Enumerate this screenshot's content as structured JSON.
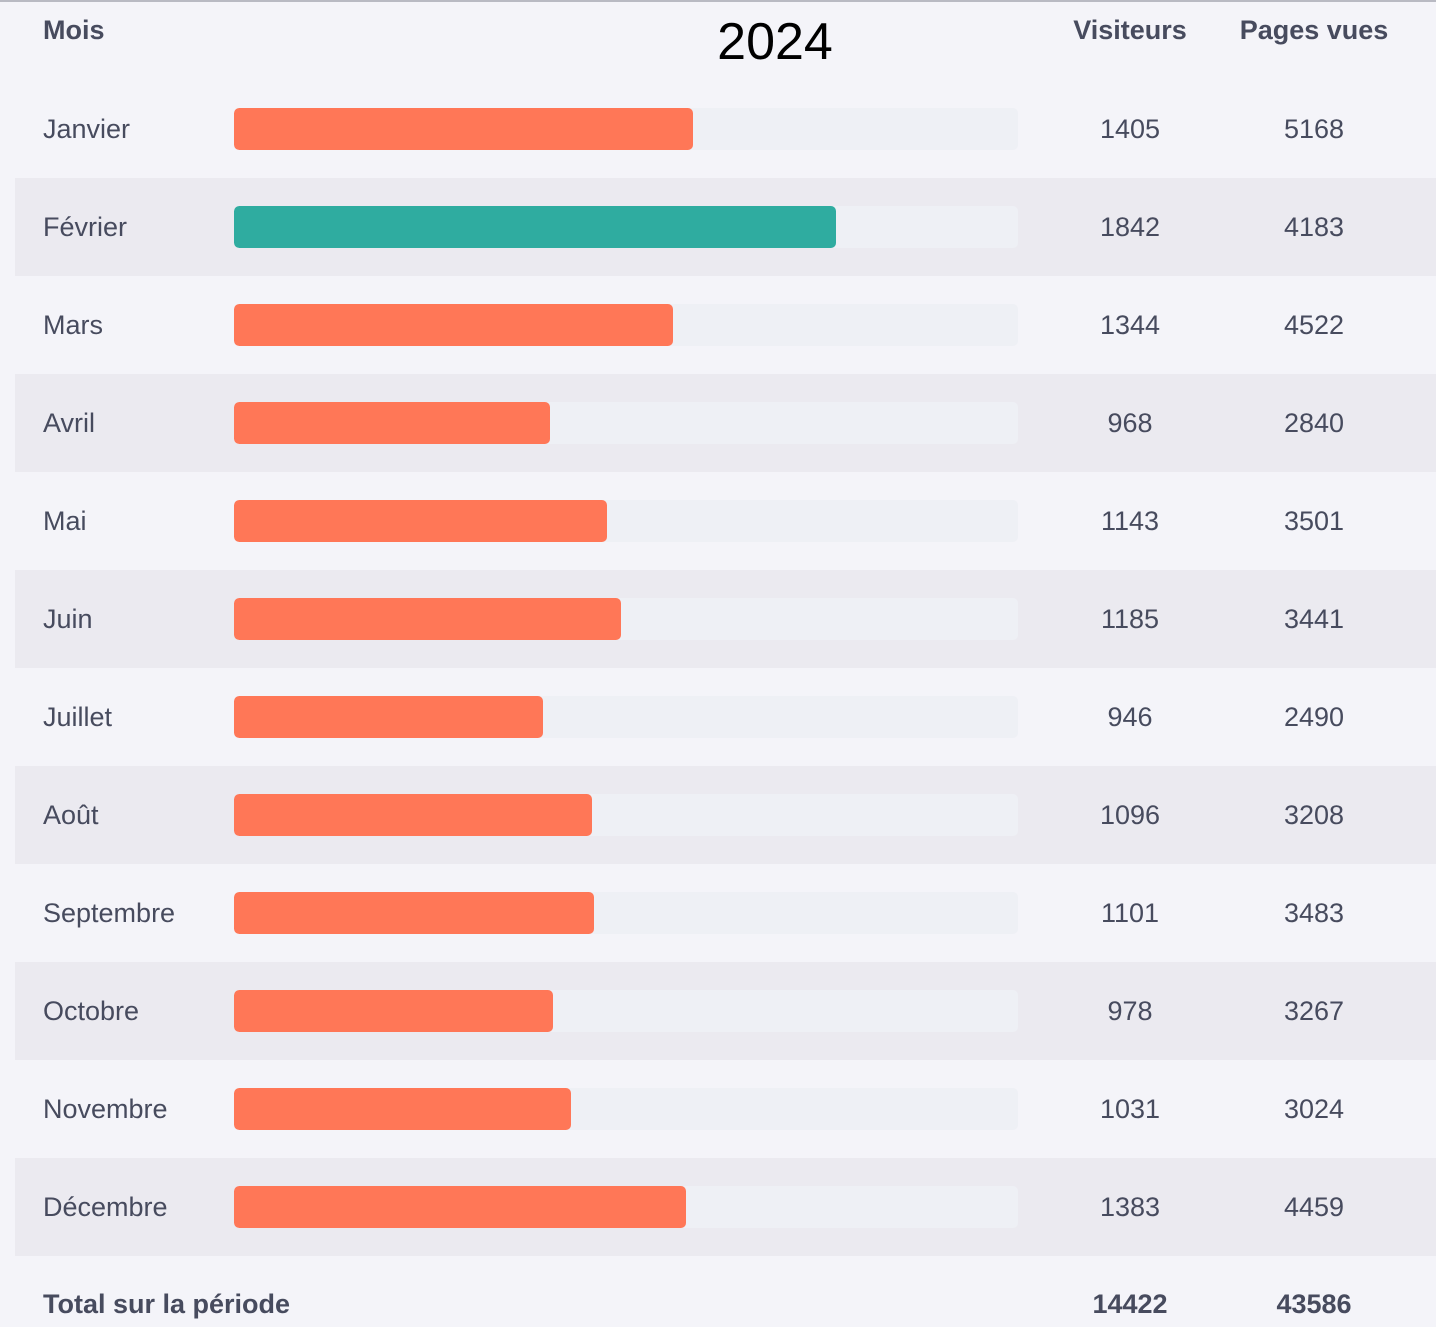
{
  "header": {
    "month_label": "Mois",
    "title": "2024",
    "visitors_label": "Visiteurs",
    "pages_label": "Pages vues"
  },
  "chart_data": {
    "type": "bar",
    "orientation": "horizontal",
    "title": "2024",
    "categories": [
      "Janvier",
      "Février",
      "Mars",
      "Avril",
      "Mai",
      "Juin",
      "Juillet",
      "Août",
      "Septembre",
      "Octobre",
      "Novembre",
      "Décembre"
    ],
    "series": [
      {
        "name": "Visiteurs",
        "values": [
          1405,
          1842,
          1344,
          968,
          1143,
          1185,
          946,
          1096,
          1101,
          978,
          1031,
          1383
        ]
      },
      {
        "name": "Pages vues",
        "values": [
          5168,
          4183,
          4522,
          2840,
          3501,
          3441,
          2490,
          3208,
          3483,
          3267,
          3024,
          4459
        ]
      }
    ],
    "bar_series": "Visiteurs",
    "xlim": [
      0,
      2400
    ],
    "highlight_index": 1,
    "colors": {
      "bar": "#ff7757",
      "highlight": "#2faca0",
      "track": "#eef0f5"
    }
  },
  "totals": {
    "label": "Total sur la période",
    "visitors": "14422",
    "pages": "43586"
  }
}
